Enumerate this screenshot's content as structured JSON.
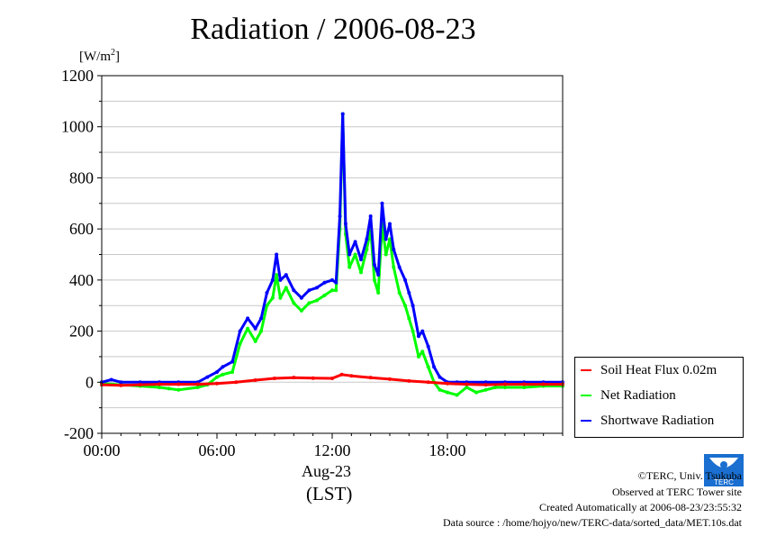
{
  "chart_data": {
    "type": "line",
    "title": "Radiation / 2006-08-23",
    "ylabel_unit": "[W/m",
    "ylabel_unit_sup": "2",
    "ylabel_unit_close": "]",
    "xlabel": "Aug-23",
    "xlabel_sub": "(LST)",
    "x_unit": "hours (LST)",
    "xlim": [
      0,
      24
    ],
    "ylim": [
      -200,
      1200
    ],
    "x_ticks": [
      0,
      6,
      12,
      18
    ],
    "x_tick_labels": [
      "00:00",
      "06:00",
      "12:00",
      "18:00"
    ],
    "y_ticks": [
      -200,
      0,
      200,
      400,
      600,
      800,
      1000,
      1200
    ],
    "y_tick_labels": [
      "-200",
      "0",
      "200",
      "400",
      "600",
      "800",
      "1000",
      "1200"
    ],
    "grid": true,
    "legend_position": "right",
    "series": [
      {
        "name": "Soil Heat Flux 0.02m",
        "color": "#ff0000",
        "x": [
          0,
          1,
          2,
          3,
          4,
          5,
          6,
          7,
          8,
          9,
          10,
          11,
          12,
          12.5,
          13,
          14,
          15,
          16,
          17,
          18,
          19,
          20,
          21,
          22,
          23,
          24
        ],
        "y": [
          -10,
          -12,
          -10,
          -8,
          -8,
          -8,
          -5,
          0,
          8,
          15,
          18,
          16,
          15,
          30,
          25,
          18,
          12,
          5,
          0,
          -5,
          -8,
          -10,
          -8,
          -8,
          -8,
          -8
        ]
      },
      {
        "name": "Net Radiation",
        "color": "#00ff00",
        "x": [
          0,
          1,
          2,
          3,
          3.5,
          4,
          5,
          5.5,
          6,
          6.3,
          6.8,
          7.2,
          7.6,
          8,
          8.3,
          8.6,
          8.9,
          9.1,
          9.3,
          9.6,
          10,
          10.4,
          10.8,
          11.2,
          11.6,
          12,
          12.2,
          12.4,
          12.55,
          12.7,
          12.9,
          13.2,
          13.5,
          13.8,
          14,
          14.2,
          14.4,
          14.6,
          14.8,
          15,
          15.2,
          15.5,
          15.8,
          16,
          16.2,
          16.5,
          16.7,
          17,
          17.3,
          17.6,
          18,
          18.5,
          19,
          19.5,
          20,
          20.5,
          21,
          22,
          23,
          24
        ],
        "y": [
          -5,
          -10,
          -15,
          -20,
          -25,
          -30,
          -20,
          -10,
          20,
          30,
          40,
          150,
          210,
          160,
          200,
          300,
          330,
          420,
          330,
          370,
          310,
          280,
          310,
          320,
          340,
          360,
          360,
          600,
          1050,
          580,
          450,
          500,
          430,
          520,
          600,
          400,
          350,
          620,
          500,
          560,
          450,
          350,
          300,
          250,
          200,
          100,
          120,
          60,
          0,
          -30,
          -40,
          -50,
          -20,
          -40,
          -30,
          -20,
          -20,
          -20,
          -15,
          -15
        ]
      },
      {
        "name": "Shortwave Radiation",
        "color": "#0000ff",
        "x": [
          0,
          0.5,
          1,
          2,
          3,
          4,
          5,
          5.5,
          6,
          6.3,
          6.8,
          7.2,
          7.6,
          8,
          8.3,
          8.6,
          8.9,
          9.1,
          9.3,
          9.6,
          10,
          10.4,
          10.8,
          11.2,
          11.6,
          12,
          12.2,
          12.4,
          12.55,
          12.7,
          12.9,
          13.2,
          13.5,
          13.8,
          14,
          14.2,
          14.4,
          14.6,
          14.8,
          15,
          15.2,
          15.5,
          15.8,
          16,
          16.2,
          16.5,
          16.7,
          17,
          17.3,
          17.6,
          18,
          18.5,
          19,
          20,
          21,
          22,
          23,
          24
        ],
        "y": [
          0,
          10,
          0,
          0,
          0,
          0,
          0,
          20,
          40,
          60,
          80,
          200,
          250,
          210,
          250,
          350,
          400,
          500,
          400,
          420,
          360,
          330,
          360,
          370,
          390,
          400,
          390,
          650,
          1050,
          620,
          500,
          550,
          480,
          560,
          650,
          460,
          420,
          700,
          560,
          620,
          520,
          450,
          400,
          350,
          300,
          180,
          200,
          140,
          60,
          20,
          0,
          0,
          0,
          0,
          0,
          0,
          0,
          0
        ]
      }
    ]
  },
  "footer": {
    "credit": "©TERC, Univ. Tsukuba",
    "observed": "Observed at TERC Tower site",
    "created": "Created Automatically at 2006-08-23/23:55:32",
    "source": "Data source : /home/hojyo/new/TERC-data/sorted_data/MET.10s.dat"
  },
  "logo": {
    "text": "TERC"
  }
}
